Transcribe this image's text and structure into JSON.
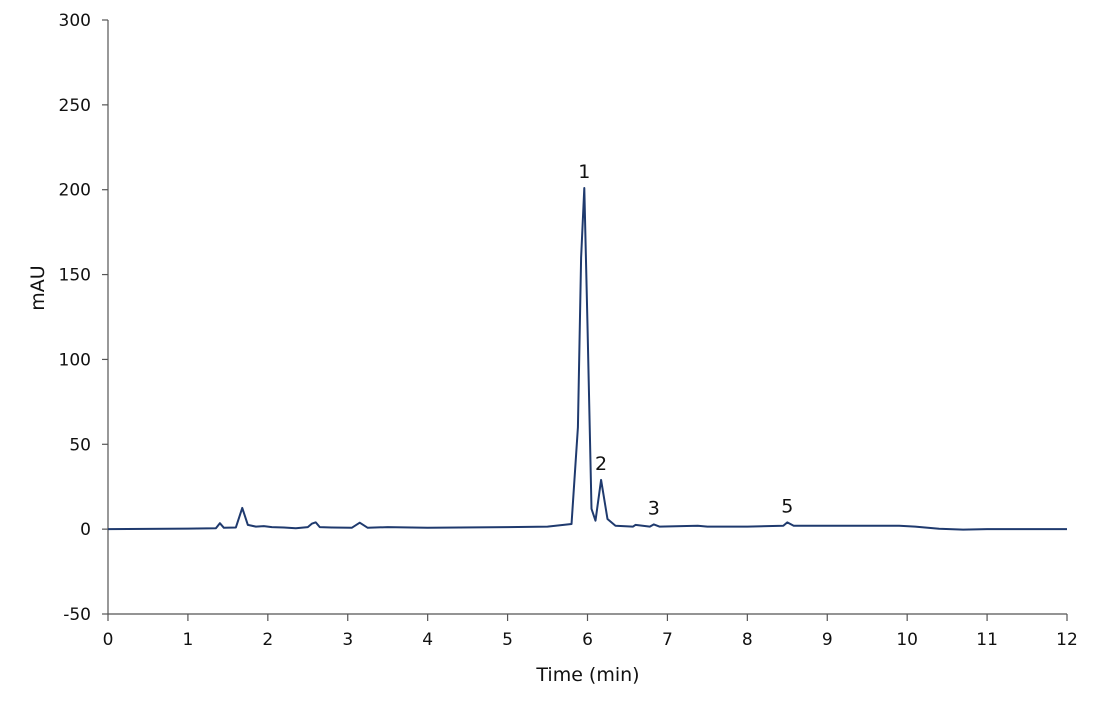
{
  "chart_data": {
    "type": "line",
    "title": "",
    "xlabel": "Time (min)",
    "ylabel": "mAU",
    "xlim": [
      0,
      12
    ],
    "ylim": [
      -50,
      300
    ],
    "xticks": [
      0,
      1,
      2,
      3,
      4,
      5,
      6,
      7,
      8,
      9,
      10,
      11,
      12
    ],
    "yticks": [
      -50,
      0,
      50,
      100,
      150,
      200,
      250,
      300
    ],
    "grid": false,
    "legend": "none",
    "colors": {
      "line": "#1f3a6e",
      "axis": "#555555"
    },
    "series": [
      {
        "x": [
          0,
          1.0,
          1.35,
          1.4,
          1.45,
          1.6,
          1.68,
          1.75,
          1.85,
          1.95,
          2.05,
          2.2,
          2.35,
          2.5,
          2.55,
          2.6,
          2.65,
          2.8,
          3.05,
          3.15,
          3.25,
          3.5,
          4.0,
          5.0,
          5.5,
          5.8,
          5.88,
          5.92,
          5.96,
          6.0,
          6.05,
          6.1,
          6.17,
          6.25,
          6.35,
          6.57,
          6.6,
          6.78,
          6.83,
          6.9,
          7.38,
          7.5,
          8.0,
          8.45,
          8.5,
          8.58,
          8.7,
          9.0,
          9.5,
          9.9,
          10.1,
          10.4,
          10.7,
          11.0,
          12.0
        ],
        "y": [
          0,
          0.3,
          0.5,
          3.5,
          0.8,
          1.0,
          12.5,
          2.5,
          1.5,
          1.8,
          1.2,
          1.0,
          0.5,
          1.2,
          3.2,
          4.0,
          1.2,
          1.0,
          0.8,
          3.8,
          0.8,
          1.2,
          0.8,
          1.2,
          1.5,
          3.0,
          60.0,
          160.0,
          201.0,
          120.0,
          12.0,
          5.0,
          29.0,
          6.0,
          2.0,
          1.5,
          2.5,
          1.5,
          2.8,
          1.5,
          2.0,
          1.5,
          1.5,
          2.0,
          4.0,
          2.0,
          2.0,
          2.0,
          2.0,
          2.0,
          1.5,
          0.2,
          -0.3,
          0.0,
          0.0
        ]
      }
    ],
    "annotations": [
      {
        "text": "1",
        "x": 5.96,
        "y": 201
      },
      {
        "text": "2",
        "x": 6.17,
        "y": 29
      },
      {
        "text": "3",
        "x": 6.83,
        "y": 2.8
      },
      {
        "text": "5",
        "x": 8.5,
        "y": 4
      }
    ]
  }
}
